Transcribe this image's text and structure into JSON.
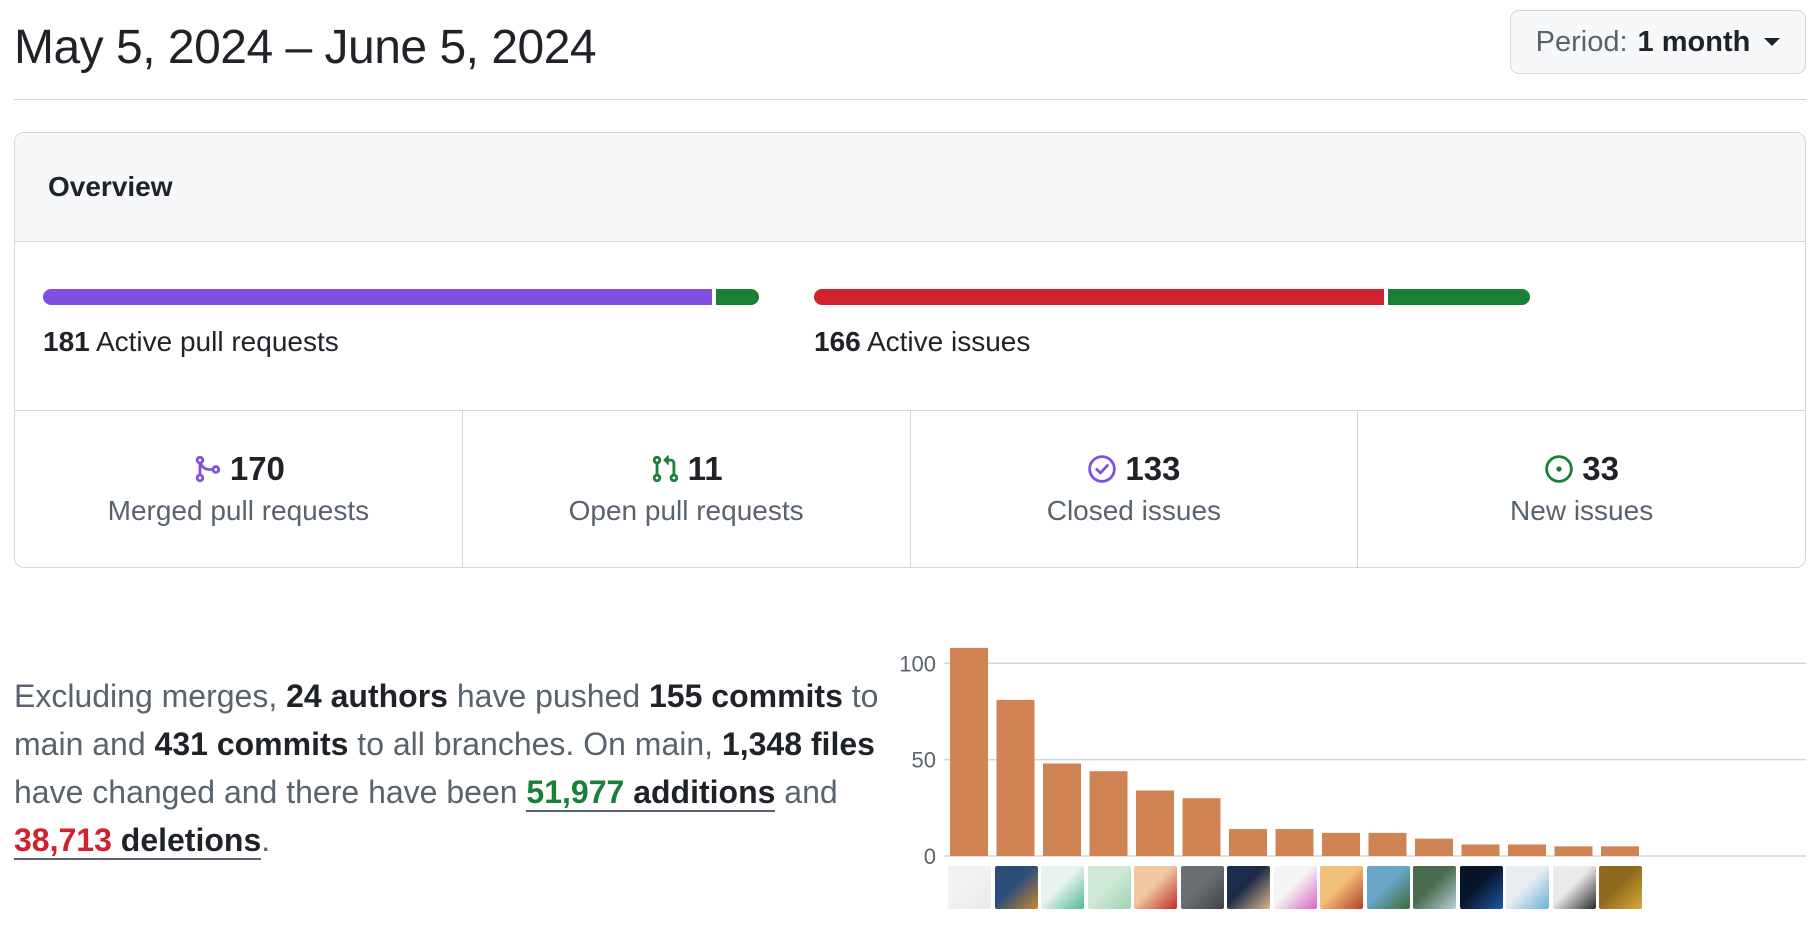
{
  "header": {
    "date_range": "May 5, 2024 – June 5, 2024",
    "period_label": "Period:",
    "period_value": "1 month"
  },
  "overview": {
    "title": "Overview",
    "pull_requests": {
      "count": "181",
      "label": "Active pull requests",
      "merged_fraction": 0.939,
      "open_fraction": 0.061,
      "merged_color": "#8250df",
      "open_color": "#1a7f37"
    },
    "issues": {
      "count": "166",
      "label": "Active issues",
      "closed_fraction": 0.8,
      "new_fraction": 0.2,
      "closed_color": "#cf222e",
      "new_color": "#1a7f37"
    },
    "stats": [
      {
        "icon": "git-merge-icon",
        "value": "170",
        "label": "Merged pull requests",
        "color": "#8250df"
      },
      {
        "icon": "git-pull-request-icon",
        "value": "11",
        "label": "Open pull requests",
        "color": "#1a7f37"
      },
      {
        "icon": "issue-closed-icon",
        "value": "133",
        "label": "Closed issues",
        "color": "#8250df"
      },
      {
        "icon": "issue-opened-icon",
        "value": "33",
        "label": "New issues",
        "color": "#1a7f37"
      }
    ]
  },
  "summary": {
    "p1": "Excluding merges, ",
    "authors": "24 authors",
    "p2": " have pushed ",
    "commits_main": "155 commits",
    "p3": " to main and ",
    "commits_all": "431 commits",
    "p4": " to all branches. On main, ",
    "files": "1,348 files",
    "p5": " have changed and there have been ",
    "additions_num": "51,977",
    "additions_word": " additions",
    "p6": " and ",
    "deletions_num": "38,713",
    "deletions_word": " deletions",
    "p7": "."
  },
  "chart_data": {
    "type": "bar",
    "bar_color": "#d08453",
    "yticks": [
      "0",
      "50",
      "100"
    ],
    "ylim": [
      0,
      110
    ],
    "values": [
      108,
      81,
      48,
      44,
      34,
      30,
      14,
      14,
      12,
      12,
      9,
      6,
      6,
      5,
      5
    ]
  },
  "avatars": [
    {
      "icon": "avatar-person-icon",
      "colors": [
        "#f2f2f2",
        "#e9e9e9"
      ]
    },
    {
      "icon": "avatar-robot-icon",
      "colors": [
        "#2b4d7a",
        "#c9872e"
      ]
    },
    {
      "icon": "avatar-identicon-icon",
      "colors": [
        "#e8f3ee",
        "#4fb89a"
      ]
    },
    {
      "icon": "avatar-ghost-icon",
      "colors": [
        "#cfe9d6",
        "#9fd4ae"
      ]
    },
    {
      "icon": "avatar-cartoon-icon",
      "colors": [
        "#f0c7a0",
        "#c02b2b"
      ]
    },
    {
      "icon": "avatar-person-icon",
      "colors": [
        "#6b6e73",
        "#3e4146"
      ]
    },
    {
      "icon": "avatar-person-icon",
      "colors": [
        "#1d2c4a",
        "#e0b48b"
      ]
    },
    {
      "icon": "avatar-identicon-icon",
      "colors": [
        "#f5f5f5",
        "#d764c4"
      ]
    },
    {
      "icon": "avatar-cartoon-icon",
      "colors": [
        "#f2c27a",
        "#b63b2b"
      ]
    },
    {
      "icon": "avatar-cartoon-icon",
      "colors": [
        "#69a6c8",
        "#3e6b38"
      ]
    },
    {
      "icon": "avatar-robot-icon",
      "colors": [
        "#4a6b4e",
        "#b9cfd8"
      ]
    },
    {
      "icon": "avatar-planet-icon",
      "colors": [
        "#071529",
        "#1e59a8"
      ]
    },
    {
      "icon": "avatar-gradient-icon",
      "colors": [
        "#e9edf1",
        "#6aaed6"
      ]
    },
    {
      "icon": "avatar-cartoon-icon",
      "colors": [
        "#eaeaea",
        "#2a2a2a"
      ]
    },
    {
      "icon": "avatar-landscape-icon",
      "colors": [
        "#8e6a1e",
        "#d8a83a"
      ]
    }
  ]
}
